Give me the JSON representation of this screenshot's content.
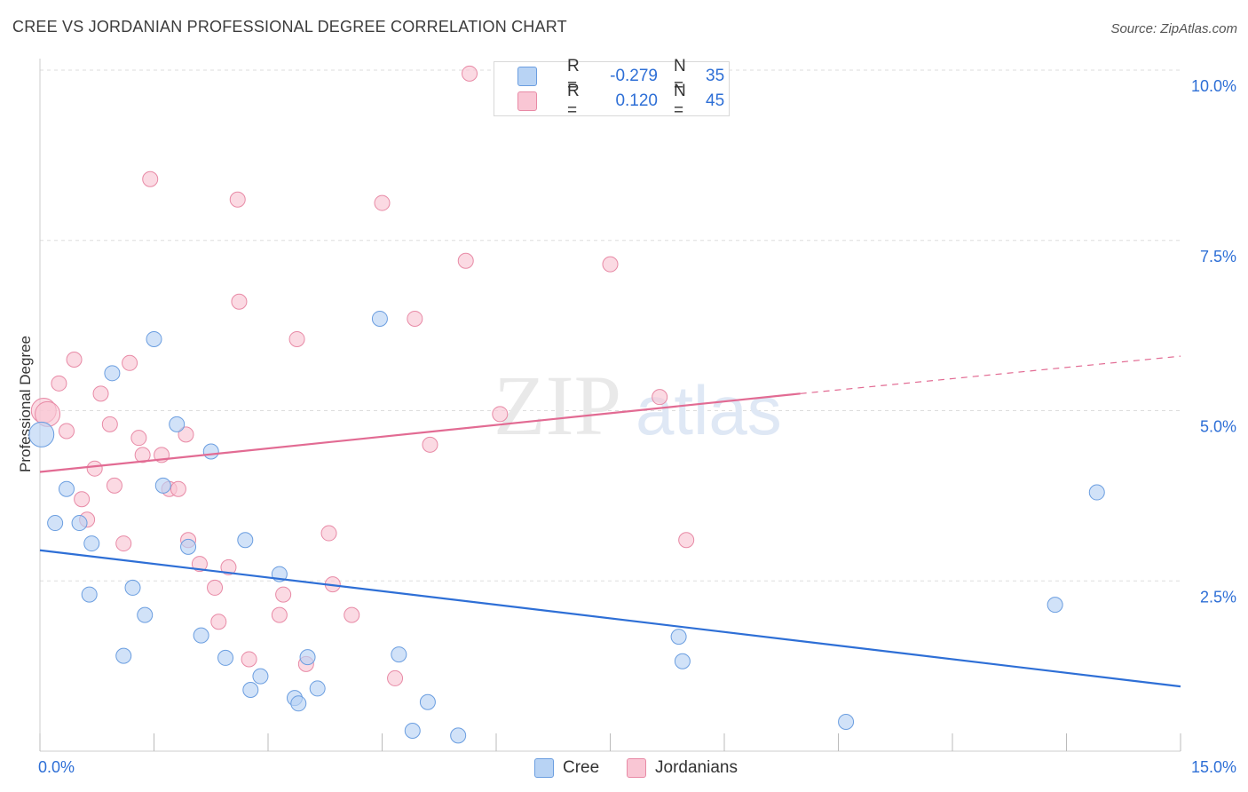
{
  "header": {
    "title": "CREE VS JORDANIAN PROFESSIONAL DEGREE CORRELATION CHART",
    "source": "Source: ZipAtlas.com"
  },
  "legend": {
    "items": [
      {
        "name": "Cree",
        "r_label": "R =",
        "r_value": "-0.279",
        "n_label": "N =",
        "n_value": "35"
      },
      {
        "name": "Jordanians",
        "r_label": "R =",
        "r_value": "0.120",
        "n_label": "N =",
        "n_value": "45"
      }
    ]
  },
  "watermark": {
    "zip": "ZIP",
    "atlas": "atlas"
  },
  "colors": {
    "cree_fill": "#b8d3f4",
    "cree_stroke": "#6b9ee0",
    "cree_line": "#2e6fd6",
    "jord_fill": "#f9c6d4",
    "jord_stroke": "#e88aa6",
    "jord_line": "#e26b93",
    "tick_text": "#2e6fd6",
    "grid": "#dddddd"
  },
  "chart_data": {
    "type": "scatter",
    "title": "CREE VS JORDANIAN PROFESSIONAL DEGREE CORRELATION CHART",
    "xlabel": "",
    "ylabel": "Professional Degree",
    "xlim": [
      0,
      15
    ],
    "ylim": [
      0,
      10
    ],
    "x_tick_labels": [
      {
        "value": 0,
        "label": "0.0%"
      },
      {
        "value": 15,
        "label": "15.0%"
      }
    ],
    "y_tick_labels": [
      {
        "value": 2.5,
        "label": "2.5%"
      },
      {
        "value": 5.0,
        "label": "5.0%"
      },
      {
        "value": 7.5,
        "label": "7.5%"
      },
      {
        "value": 10.0,
        "label": "10.0%"
      }
    ],
    "series": [
      {
        "name": "Cree",
        "points": [
          [
            0.02,
            4.65
          ],
          [
            0.35,
            3.85
          ],
          [
            0.2,
            3.35
          ],
          [
            0.52,
            3.35
          ],
          [
            0.68,
            3.05
          ],
          [
            0.95,
            5.55
          ],
          [
            1.5,
            6.05
          ],
          [
            1.8,
            4.8
          ],
          [
            2.25,
            4.4
          ],
          [
            1.62,
            3.9
          ],
          [
            1.95,
            3.0
          ],
          [
            2.7,
            3.1
          ],
          [
            3.15,
            2.6
          ],
          [
            0.65,
            2.3
          ],
          [
            1.22,
            2.4
          ],
          [
            1.38,
            2.0
          ],
          [
            1.1,
            1.4
          ],
          [
            2.12,
            1.7
          ],
          [
            2.44,
            1.37
          ],
          [
            2.9,
            1.1
          ],
          [
            2.77,
            0.9
          ],
          [
            3.35,
            0.78
          ],
          [
            3.4,
            0.7
          ],
          [
            3.52,
            1.38
          ],
          [
            3.65,
            0.92
          ],
          [
            4.47,
            6.35
          ],
          [
            4.72,
            1.42
          ],
          [
            5.1,
            0.72
          ],
          [
            4.9,
            0.3
          ],
          [
            5.5,
            0.23
          ],
          [
            8.4,
            1.68
          ],
          [
            8.45,
            1.32
          ],
          [
            10.6,
            0.43
          ],
          [
            13.9,
            3.8
          ],
          [
            13.35,
            2.15
          ]
        ]
      },
      {
        "name": "Jordanians",
        "points": [
          [
            0.05,
            5.0
          ],
          [
            0.1,
            4.95
          ],
          [
            0.25,
            5.4
          ],
          [
            0.45,
            5.75
          ],
          [
            0.35,
            4.7
          ],
          [
            0.55,
            3.7
          ],
          [
            0.62,
            3.4
          ],
          [
            0.72,
            4.15
          ],
          [
            0.8,
            5.25
          ],
          [
            0.92,
            4.8
          ],
          [
            0.98,
            3.9
          ],
          [
            1.1,
            3.05
          ],
          [
            1.18,
            5.7
          ],
          [
            1.3,
            4.6
          ],
          [
            1.35,
            4.35
          ],
          [
            1.45,
            8.4
          ],
          [
            1.6,
            4.35
          ],
          [
            1.7,
            3.85
          ],
          [
            1.82,
            3.85
          ],
          [
            1.92,
            4.65
          ],
          [
            1.95,
            3.1
          ],
          [
            2.1,
            2.75
          ],
          [
            2.3,
            2.4
          ],
          [
            2.35,
            1.9
          ],
          [
            2.48,
            2.7
          ],
          [
            2.6,
            8.1
          ],
          [
            2.62,
            6.6
          ],
          [
            2.75,
            1.35
          ],
          [
            3.2,
            2.3
          ],
          [
            3.15,
            2.0
          ],
          [
            3.38,
            6.05
          ],
          [
            3.5,
            1.28
          ],
          [
            3.8,
            3.2
          ],
          [
            3.85,
            2.45
          ],
          [
            4.1,
            2.0
          ],
          [
            4.5,
            8.05
          ],
          [
            4.67,
            1.07
          ],
          [
            4.93,
            6.35
          ],
          [
            5.13,
            4.5
          ],
          [
            5.6,
            7.2
          ],
          [
            5.65,
            9.95
          ],
          [
            6.05,
            4.95
          ],
          [
            7.5,
            7.15
          ],
          [
            8.15,
            5.2
          ],
          [
            8.5,
            3.1
          ]
        ]
      }
    ],
    "trend_lines": [
      {
        "name": "Cree",
        "x": [
          0,
          15
        ],
        "y": [
          2.95,
          0.95
        ],
        "style": "solid"
      },
      {
        "name": "Jordanians",
        "x": [
          0,
          10.0
        ],
        "y": [
          4.1,
          5.25
        ],
        "style": "solid"
      },
      {
        "name": "Jordanians",
        "x": [
          10.0,
          15
        ],
        "y": [
          5.25,
          5.8
        ],
        "style": "dashed"
      }
    ]
  }
}
